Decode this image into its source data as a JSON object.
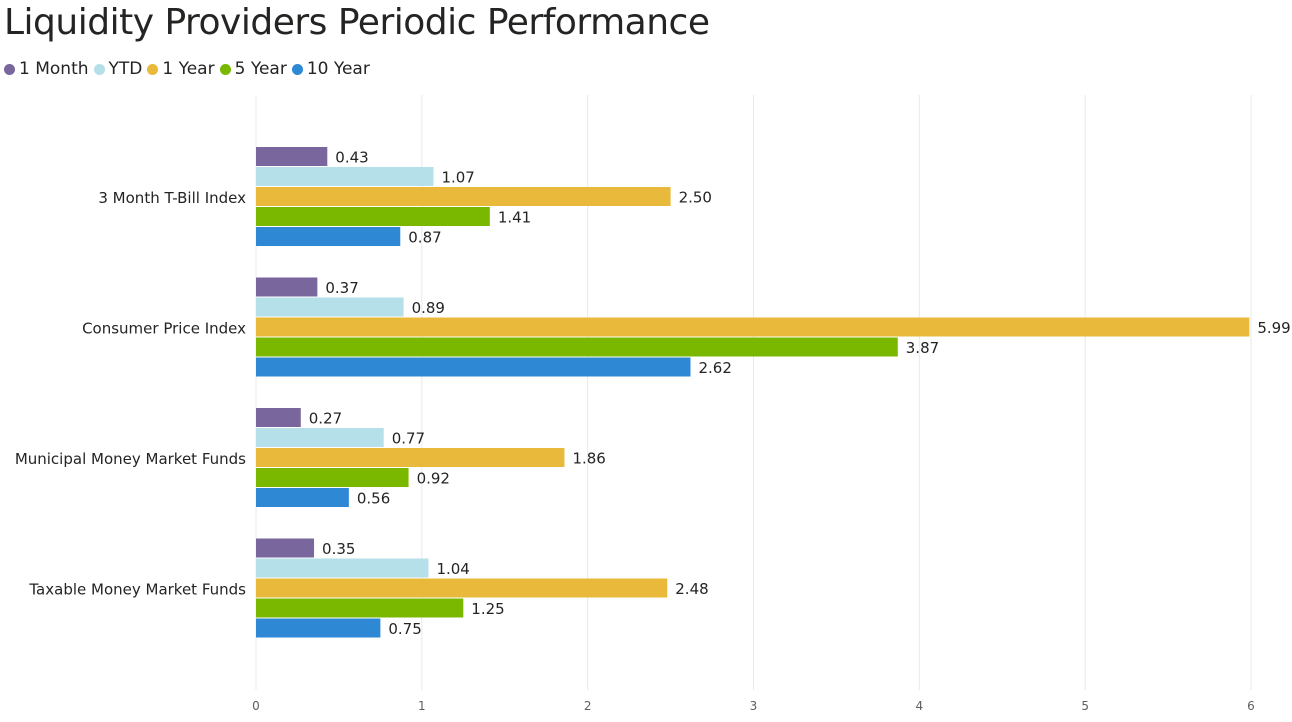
{
  "chart_data": {
    "type": "bar",
    "orientation": "horizontal",
    "title": "Liquidity Providers Periodic Performance",
    "categories": [
      "3 Month T-Bill Index",
      "Consumer Price Index",
      "Municipal Money Market Funds",
      "Taxable Money Market Funds"
    ],
    "series": [
      {
        "name": "1 Month",
        "color": "#79669C",
        "values": [
          0.43,
          0.37,
          0.27,
          0.35
        ]
      },
      {
        "name": "YTD",
        "color": "#B5DFE9",
        "values": [
          1.07,
          0.89,
          0.77,
          1.04
        ]
      },
      {
        "name": "1 Year",
        "color": "#E8B93A",
        "values": [
          2.5,
          5.99,
          1.86,
          2.48
        ]
      },
      {
        "name": "5 Year",
        "color": "#7AB800",
        "values": [
          1.41,
          3.87,
          0.92,
          1.25
        ]
      },
      {
        "name": "10 Year",
        "color": "#2E88D4",
        "values": [
          0.87,
          2.62,
          0.56,
          0.75
        ]
      }
    ],
    "xlim": [
      0,
      6
    ],
    "x_ticks": [
      0,
      1,
      2,
      3,
      4,
      5,
      6
    ],
    "data_label_format": "2 decimals",
    "grid": true,
    "legend_position": "top-left"
  }
}
